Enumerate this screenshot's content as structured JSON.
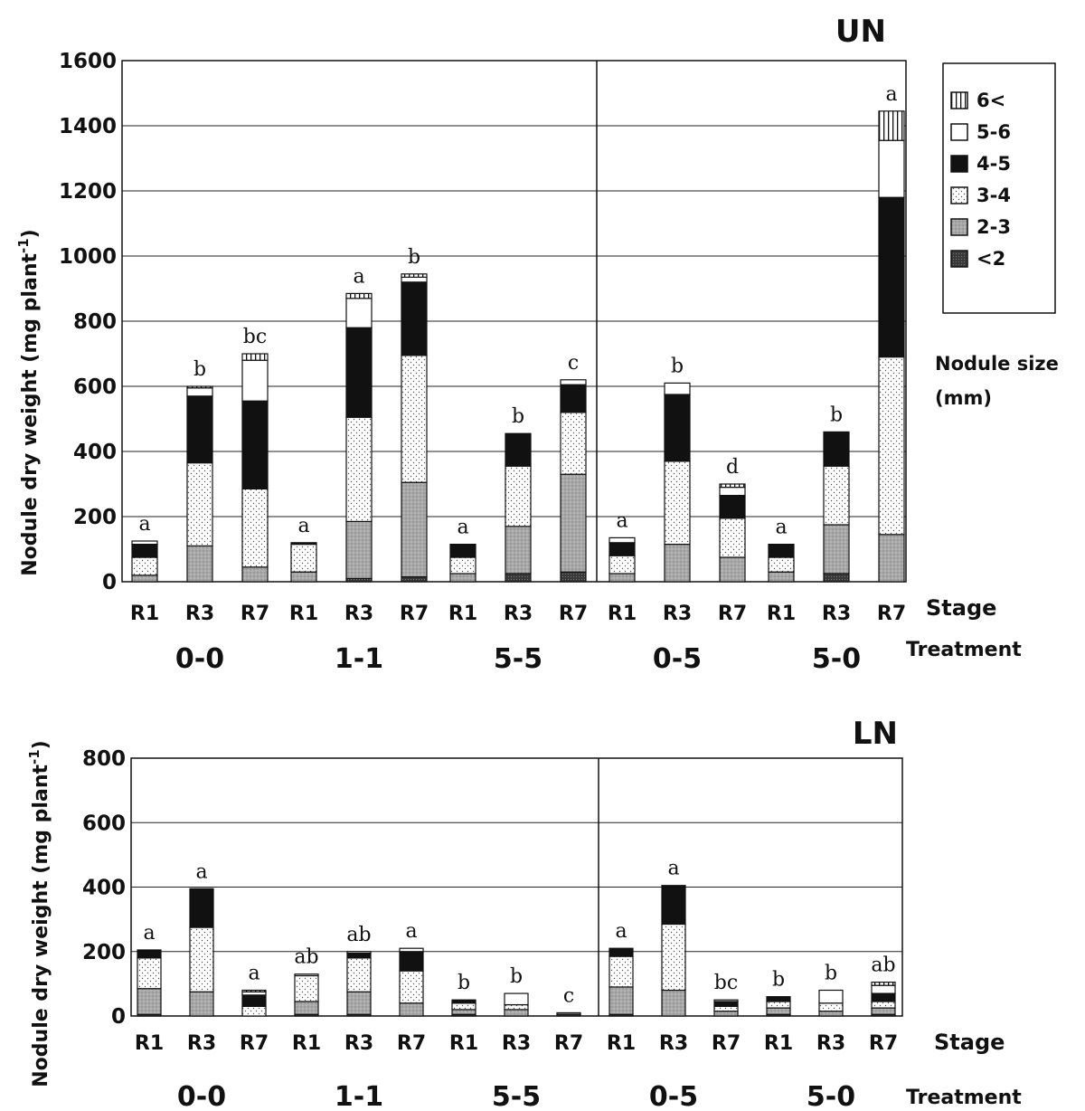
{
  "chart_data": [
    {
      "type": "bar",
      "stacked": true,
      "title": "UN",
      "ylabel": "Nodule dry weight (mg plant",
      "ylabel_sup": "-1",
      "ylabel_close": ")",
      "ylim": [
        0,
        1600
      ],
      "yticks": [
        "0",
        "200",
        "400",
        "600",
        "800",
        "1000",
        "1200",
        "1400",
        "1600"
      ],
      "grid": true,
      "stage_axis_label": "Stage",
      "treatment_axis_label": "Treatment",
      "legend_title_1": "Nodule size",
      "legend_title_2": "(mm)",
      "legend_placement": "right",
      "size_classes": [
        {
          "name": "<2",
          "pattern": "dark-dots"
        },
        {
          "name": "2-3",
          "pattern": "grey"
        },
        {
          "name": "3-4",
          "pattern": "dots"
        },
        {
          "name": "4-5",
          "pattern": "black"
        },
        {
          "name": "5-6",
          "pattern": "white"
        },
        {
          "name": "6<",
          "pattern": "vertical-lines"
        }
      ],
      "groups": [
        {
          "treatment": "0-0",
          "bars": [
            {
              "stage": "R1",
              "letter": "a",
              "values": [
                0,
                20,
                55,
                40,
                10,
                0
              ]
            },
            {
              "stage": "R3",
              "letter": "b",
              "values": [
                0,
                110,
                255,
                205,
                25,
                5
              ]
            },
            {
              "stage": "R7",
              "letter": "bc",
              "values": [
                0,
                45,
                240,
                270,
                125,
                20
              ]
            }
          ]
        },
        {
          "treatment": "1-1",
          "bars": [
            {
              "stage": "R1",
              "letter": "a",
              "values": [
                0,
                30,
                85,
                5,
                0,
                0
              ]
            },
            {
              "stage": "R3",
              "letter": "a",
              "values": [
                10,
                175,
                320,
                275,
                90,
                15
              ]
            },
            {
              "stage": "R7",
              "letter": "b",
              "values": [
                15,
                290,
                390,
                225,
                15,
                10
              ]
            }
          ]
        },
        {
          "treatment": "5-5",
          "bars": [
            {
              "stage": "R1",
              "letter": "a",
              "values": [
                0,
                25,
                50,
                40,
                0,
                0
              ]
            },
            {
              "stage": "R3",
              "letter": "b",
              "values": [
                25,
                145,
                185,
                100,
                0,
                0
              ]
            },
            {
              "stage": "R7",
              "letter": "c",
              "values": [
                30,
                300,
                190,
                85,
                15,
                0
              ]
            }
          ]
        },
        {
          "treatment": "0-5",
          "bars": [
            {
              "stage": "R1",
              "letter": "a",
              "values": [
                0,
                25,
                55,
                40,
                15,
                0
              ]
            },
            {
              "stage": "R3",
              "letter": "b",
              "values": [
                0,
                115,
                255,
                205,
                35,
                0
              ]
            },
            {
              "stage": "R7",
              "letter": "d",
              "values": [
                0,
                75,
                120,
                70,
                25,
                10
              ]
            }
          ]
        },
        {
          "treatment": "5-0",
          "bars": [
            {
              "stage": "R1",
              "letter": "a",
              "values": [
                0,
                30,
                45,
                40,
                0,
                0
              ]
            },
            {
              "stage": "R3",
              "letter": "b",
              "values": [
                25,
                150,
                180,
                105,
                0,
                0
              ]
            },
            {
              "stage": "R7",
              "letter": "a",
              "values": [
                0,
                145,
                545,
                490,
                175,
                90
              ]
            }
          ]
        }
      ]
    },
    {
      "type": "bar",
      "stacked": true,
      "title": "LN",
      "ylabel": "Nodule dry weight (mg plant",
      "ylabel_sup": "-1",
      "ylabel_close": ")",
      "ylim": [
        0,
        800
      ],
      "yticks": [
        "0",
        "200",
        "400",
        "600",
        "800"
      ],
      "grid": true,
      "stage_axis_label": "Stage",
      "treatment_axis_label": "Treatment",
      "groups": [
        {
          "treatment": "0-0",
          "bars": [
            {
              "stage": "R1",
              "letter": "a",
              "values": [
                5,
                80,
                95,
                25,
                0,
                0
              ]
            },
            {
              "stage": "R3",
              "letter": "a",
              "values": [
                0,
                75,
                200,
                120,
                0,
                0
              ]
            },
            {
              "stage": "R7",
              "letter": "a",
              "values": [
                0,
                0,
                30,
                35,
                10,
                5
              ]
            }
          ]
        },
        {
          "treatment": "1-1",
          "bars": [
            {
              "stage": "R1",
              "letter": "ab",
              "values": [
                5,
                40,
                80,
                0,
                5,
                0
              ]
            },
            {
              "stage": "R3",
              "letter": "ab",
              "values": [
                5,
                70,
                105,
                15,
                5,
                0
              ]
            },
            {
              "stage": "R7",
              "letter": "a",
              "values": [
                0,
                40,
                100,
                60,
                10,
                0
              ]
            }
          ]
        },
        {
          "treatment": "5-5",
          "bars": [
            {
              "stage": "R1",
              "letter": "b",
              "values": [
                5,
                15,
                20,
                10,
                0,
                0
              ]
            },
            {
              "stage": "R3",
              "letter": "b",
              "values": [
                0,
                20,
                15,
                0,
                35,
                0
              ]
            },
            {
              "stage": "R7",
              "letter": "c",
              "values": [
                5,
                5,
                0,
                0,
                0,
                0
              ]
            }
          ]
        },
        {
          "treatment": "0-5",
          "bars": [
            {
              "stage": "R1",
              "letter": "a",
              "values": [
                5,
                85,
                95,
                25,
                0,
                0
              ]
            },
            {
              "stage": "R3",
              "letter": "a",
              "values": [
                0,
                80,
                205,
                120,
                0,
                0
              ]
            },
            {
              "stage": "R7",
              "letter": "bc",
              "values": [
                0,
                15,
                15,
                15,
                5,
                0
              ]
            }
          ]
        },
        {
          "treatment": "5-0",
          "bars": [
            {
              "stage": "R1",
              "letter": "b",
              "values": [
                5,
                20,
                20,
                15,
                0,
                0
              ]
            },
            {
              "stage": "R3",
              "letter": "b",
              "values": [
                0,
                15,
                25,
                0,
                40,
                0
              ]
            },
            {
              "stage": "R7",
              "letter": "ab",
              "values": [
                5,
                20,
                20,
                25,
                25,
                10
              ]
            }
          ]
        }
      ]
    }
  ]
}
